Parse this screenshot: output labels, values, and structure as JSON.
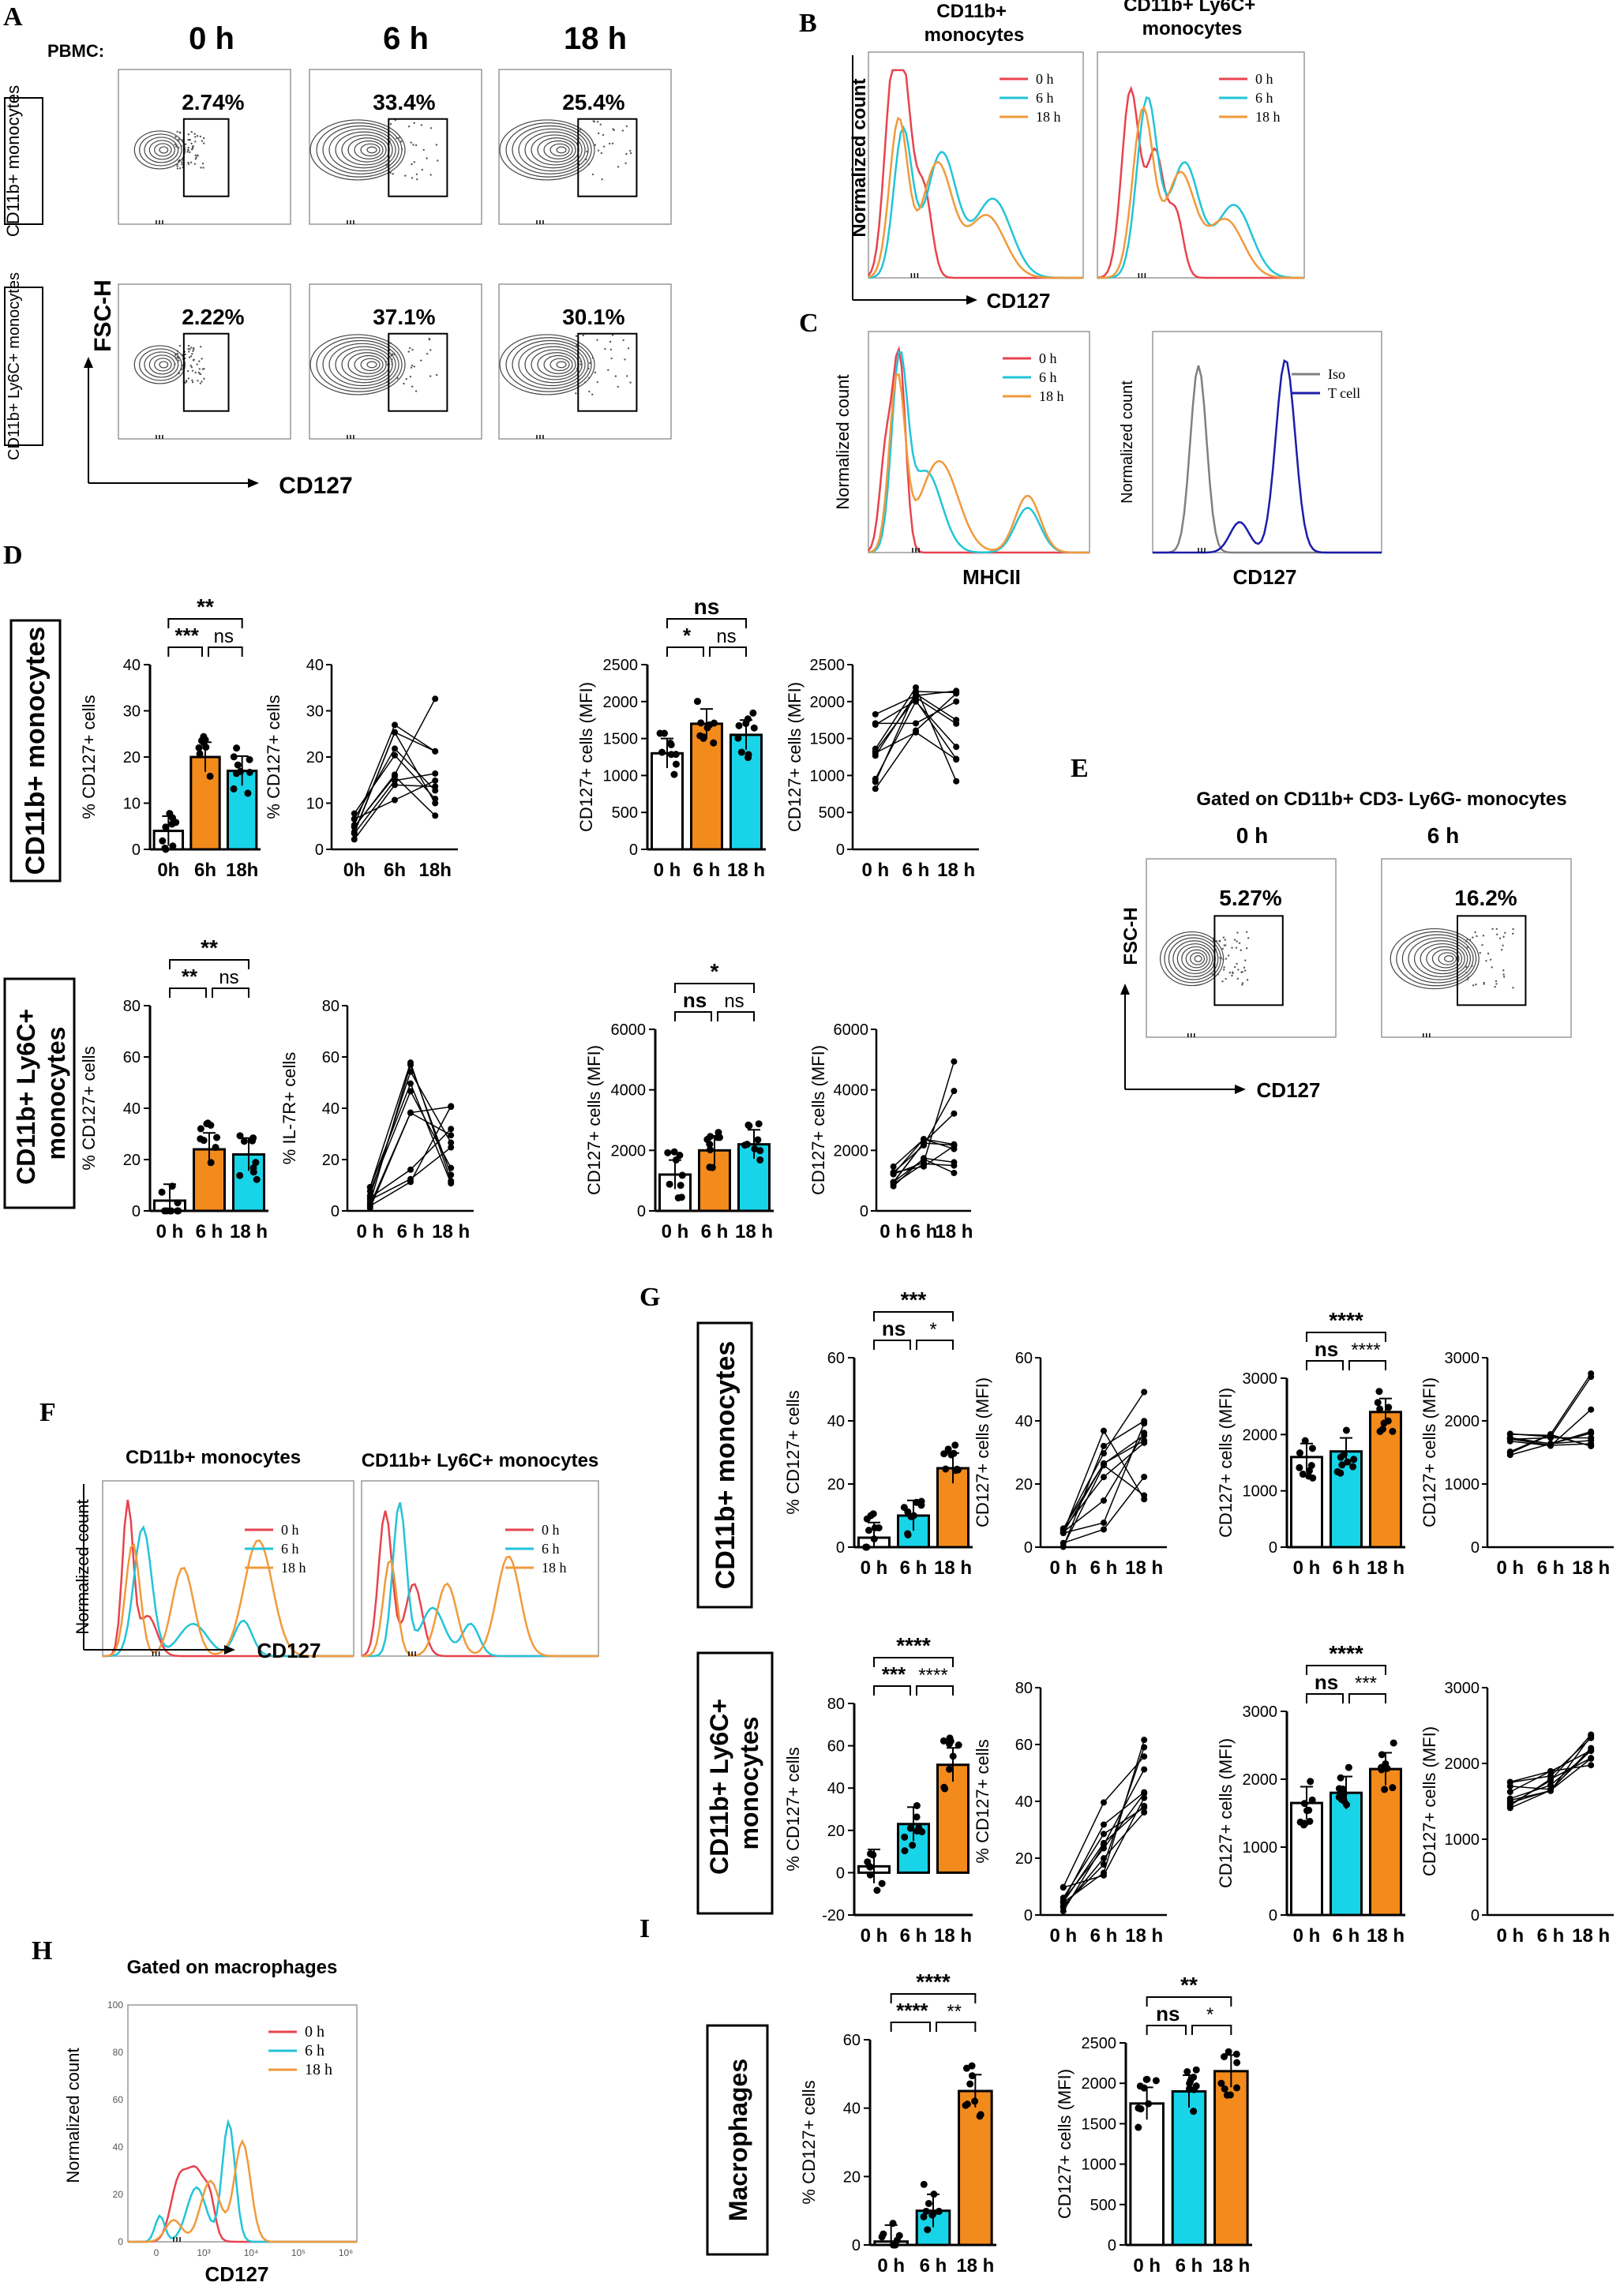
{
  "panels": {
    "A": {
      "label": "A",
      "pbmc_label": "PBMC:",
      "time_headers": [
        "0 h",
        "6 h",
        "18 h"
      ],
      "rows": [
        {
          "name": "CD11b+\nmonocytes",
          "pcts": [
            "2.74%",
            "33.4%",
            "25.4%"
          ]
        },
        {
          "name": "CD11b+ Ly6C+\nmonocytes",
          "pcts": [
            "2.22%",
            "37.1%",
            "30.1%"
          ]
        }
      ],
      "y_axis": "FSC-H",
      "x_axis": "CD127"
    },
    "B": {
      "label": "B",
      "titles": [
        "CD11b+\nmonocytes",
        "CD11b+ Ly6C+\nmonocytes"
      ],
      "ylabel": "Normalized count",
      "xlabel": "CD127",
      "legend": [
        "0 h",
        "6 h",
        "18 h"
      ]
    },
    "C": {
      "label": "C",
      "ylabel": "Normalized count",
      "xlabels": [
        "MHCII",
        "CD127"
      ],
      "legend1": [
        "0 h",
        "6 h",
        "18 h"
      ],
      "legend2": [
        "Iso",
        "T cell"
      ]
    },
    "D": {
      "label": "D",
      "row_titles": [
        "CD11b+ monocytes",
        "CD11b+ Ly6C+\nmonocytes"
      ],
      "top": {
        "pct_ylabel": "% CD127+ cells",
        "pct_ticks": [
          "0",
          "10",
          "20",
          "30",
          "40"
        ],
        "pct_x": [
          "0h",
          "6h",
          "18h"
        ],
        "pct_sig": [
          "**",
          "***",
          "ns"
        ],
        "line_ylabel": "% CD127+ cells",
        "mfi_ylabel": "CD127+ cells (MFI)",
        "mfi_ticks": [
          "0",
          "500",
          "1000",
          "1500",
          "2000",
          "2500"
        ],
        "mfi_x": [
          "0 h",
          "6 h",
          "18 h"
        ],
        "mfi_sig": [
          "ns",
          "*",
          "ns"
        ]
      },
      "bottom": {
        "pct_ylabel": "% CD127+ cells",
        "pct_ticks": [
          "0",
          "20",
          "40",
          "60",
          "80"
        ],
        "pct_x": [
          "0 h",
          "6 h",
          "18 h"
        ],
        "pct_sig": [
          "**",
          "**",
          "ns"
        ],
        "line_ylabel": "% IL-7R+ cells",
        "mfi_ylabel": "CD127+ cells  (MFI)",
        "mfi_ticks": [
          "0",
          "2000",
          "4000",
          "6000"
        ],
        "mfi_x": [
          "0 h",
          "6 h",
          "18 h"
        ],
        "mfi_sig": [
          "*",
          "ns",
          "ns"
        ],
        "line2_ylabel": "CD127+ cells  (MFI)"
      }
    },
    "E": {
      "label": "E",
      "title": "Gated on CD11b+ CD3- Ly6G-  monocytes",
      "time_headers": [
        "0 h",
        "6 h"
      ],
      "pcts": [
        "5.27%",
        "16.2%"
      ],
      "y_axis": "FSC-H",
      "x_axis": "CD127"
    },
    "F": {
      "label": "F",
      "titles": [
        "CD11b+ monocytes",
        "CD11b+ Ly6C+ monocytes"
      ],
      "ylabel": "Normalized count",
      "xlabel": "CD127",
      "legend": [
        "0 h",
        "6 h",
        "18 h"
      ]
    },
    "G": {
      "label": "G",
      "row_titles": [
        "CD11b+ monocytes",
        "CD11b+ Ly6C+\nmonocytes"
      ],
      "top": {
        "pct_ylabel": "% CD127+ cells",
        "pct_ticks": [
          "0",
          "20",
          "40",
          "60"
        ],
        "pct_sig": [
          "***",
          "ns",
          "*"
        ],
        "line_ylabel": "CD127+ cells (MFI)",
        "line_ticks": [
          "0",
          "20",
          "40",
          "60"
        ],
        "mfi_ylabel": "CD127+ cells (MFI)",
        "mfi_ticks": [
          "0",
          "1000",
          "2000",
          "3000"
        ],
        "mfi_sig": [
          "****",
          "ns",
          "****"
        ],
        "line2_ylabel": "CD127+ cells  (MFI)",
        "line2_ticks": [
          "0",
          "1000",
          "2000",
          "3000"
        ]
      },
      "bottom": {
        "pct_ylabel": "% CD127+ cells",
        "pct_ticks": [
          "-20",
          "0",
          "20",
          "40",
          "60",
          "80"
        ],
        "pct_sig": [
          "****",
          "***",
          "****"
        ],
        "line_ylabel": "% CD127+ cells",
        "line_ticks": [
          "0",
          "20",
          "40",
          "60",
          "80"
        ],
        "mfi_ylabel": "CD127+ cells  (MFI)",
        "mfi_ticks": [
          "0",
          "1000",
          "2000",
          "3000"
        ],
        "mfi_sig": [
          "****",
          "ns",
          "***"
        ],
        "line2_ylabel": "CD127+ cells (MFI)",
        "line2_ticks": [
          "0",
          "1000",
          "2000",
          "3000"
        ]
      },
      "x_ticks": [
        "0 h",
        "6 h",
        "18 h"
      ]
    },
    "H": {
      "label": "H",
      "title": "Gated on macrophages",
      "ylabel": "Normalized count",
      "xlabel": "CD127",
      "yticks": [
        "0",
        "20",
        "40",
        "60",
        "80",
        "100"
      ],
      "xticks": [
        "0",
        "10³",
        "10⁴",
        "10⁵",
        "10⁶"
      ],
      "legend": [
        "0 h",
        "6 h",
        "18 h"
      ]
    },
    "I": {
      "label": "I",
      "row_title": "Macrophages",
      "pct_ylabel": "% CD127+ cells",
      "pct_ticks": [
        "0",
        "20",
        "40",
        "60"
      ],
      "pct_sig": [
        "****",
        "****",
        "**"
      ],
      "mfi_ylabel": "CD127+ cells  (MFI)",
      "mfi_ticks": [
        "0",
        "500",
        "1000",
        "1500",
        "2000",
        "2500"
      ],
      "mfi_sig": [
        "**",
        "ns",
        "*"
      ],
      "x_ticks": [
        "0 h",
        "6 h",
        "18 h"
      ]
    }
  },
  "colors": {
    "zero": "#e8434f",
    "six": "#22c4d8",
    "eighteen": "#f09a3c",
    "orange_bar": "#f28a1c",
    "cyan_bar": "#18d4e8",
    "iso": "#808080",
    "tcell": "#1c1caa"
  },
  "chart_data": [
    {
      "type": "bar",
      "title": "D CD11b+ monocytes %CD127+",
      "categories": [
        "0h",
        "6h",
        "18h"
      ],
      "values": [
        4,
        20,
        17
      ],
      "ylim": [
        0,
        40
      ]
    },
    {
      "type": "bar",
      "title": "D CD11b+ monocytes MFI",
      "categories": [
        "0 h",
        "6 h",
        "18 h"
      ],
      "values": [
        1300,
        1700,
        1550
      ],
      "ylim": [
        0,
        2500
      ]
    },
    {
      "type": "bar",
      "title": "D CD11b+ Ly6C+ monocytes %CD127+",
      "categories": [
        "0 h",
        "6 h",
        "18 h"
      ],
      "values": [
        4,
        24,
        22
      ],
      "ylim": [
        0,
        80
      ]
    },
    {
      "type": "bar",
      "title": "D CD11b+ Ly6C+ monocytes MFI",
      "categories": [
        "0 h",
        "6 h",
        "18 h"
      ],
      "values": [
        1200,
        2000,
        2200
      ],
      "ylim": [
        0,
        6000
      ]
    },
    {
      "type": "bar",
      "title": "G CD11b+ monocytes %CD127+",
      "categories": [
        "0 h",
        "6 h",
        "18 h"
      ],
      "values": [
        3,
        10,
        25
      ],
      "ylim": [
        0,
        60
      ]
    },
    {
      "type": "bar",
      "title": "G CD11b+ monocytes MFI",
      "categories": [
        "0 h",
        "6 h",
        "18 h"
      ],
      "values": [
        1600,
        1700,
        2400
      ],
      "ylim": [
        0,
        3000
      ]
    },
    {
      "type": "bar",
      "title": "G CD11b+ Ly6C+ monocytes %CD127+",
      "categories": [
        "0 h",
        "6 h",
        "18 h"
      ],
      "values": [
        3,
        23,
        51
      ],
      "ylim": [
        -20,
        80
      ]
    },
    {
      "type": "bar",
      "title": "G CD11b+ Ly6C+ monocytes MFI",
      "categories": [
        "0 h",
        "6 h",
        "18 h"
      ],
      "values": [
        1650,
        1800,
        2150
      ],
      "ylim": [
        0,
        3000
      ]
    },
    {
      "type": "bar",
      "title": "I Macrophages %CD127+",
      "categories": [
        "0 h",
        "6 h",
        "18 h"
      ],
      "values": [
        1,
        10,
        45
      ],
      "ylim": [
        0,
        60
      ]
    },
    {
      "type": "bar",
      "title": "I Macrophages MFI",
      "categories": [
        "0 h",
        "6 h",
        "18 h"
      ],
      "values": [
        1750,
        1900,
        2150
      ],
      "ylim": [
        0,
        2500
      ]
    }
  ]
}
